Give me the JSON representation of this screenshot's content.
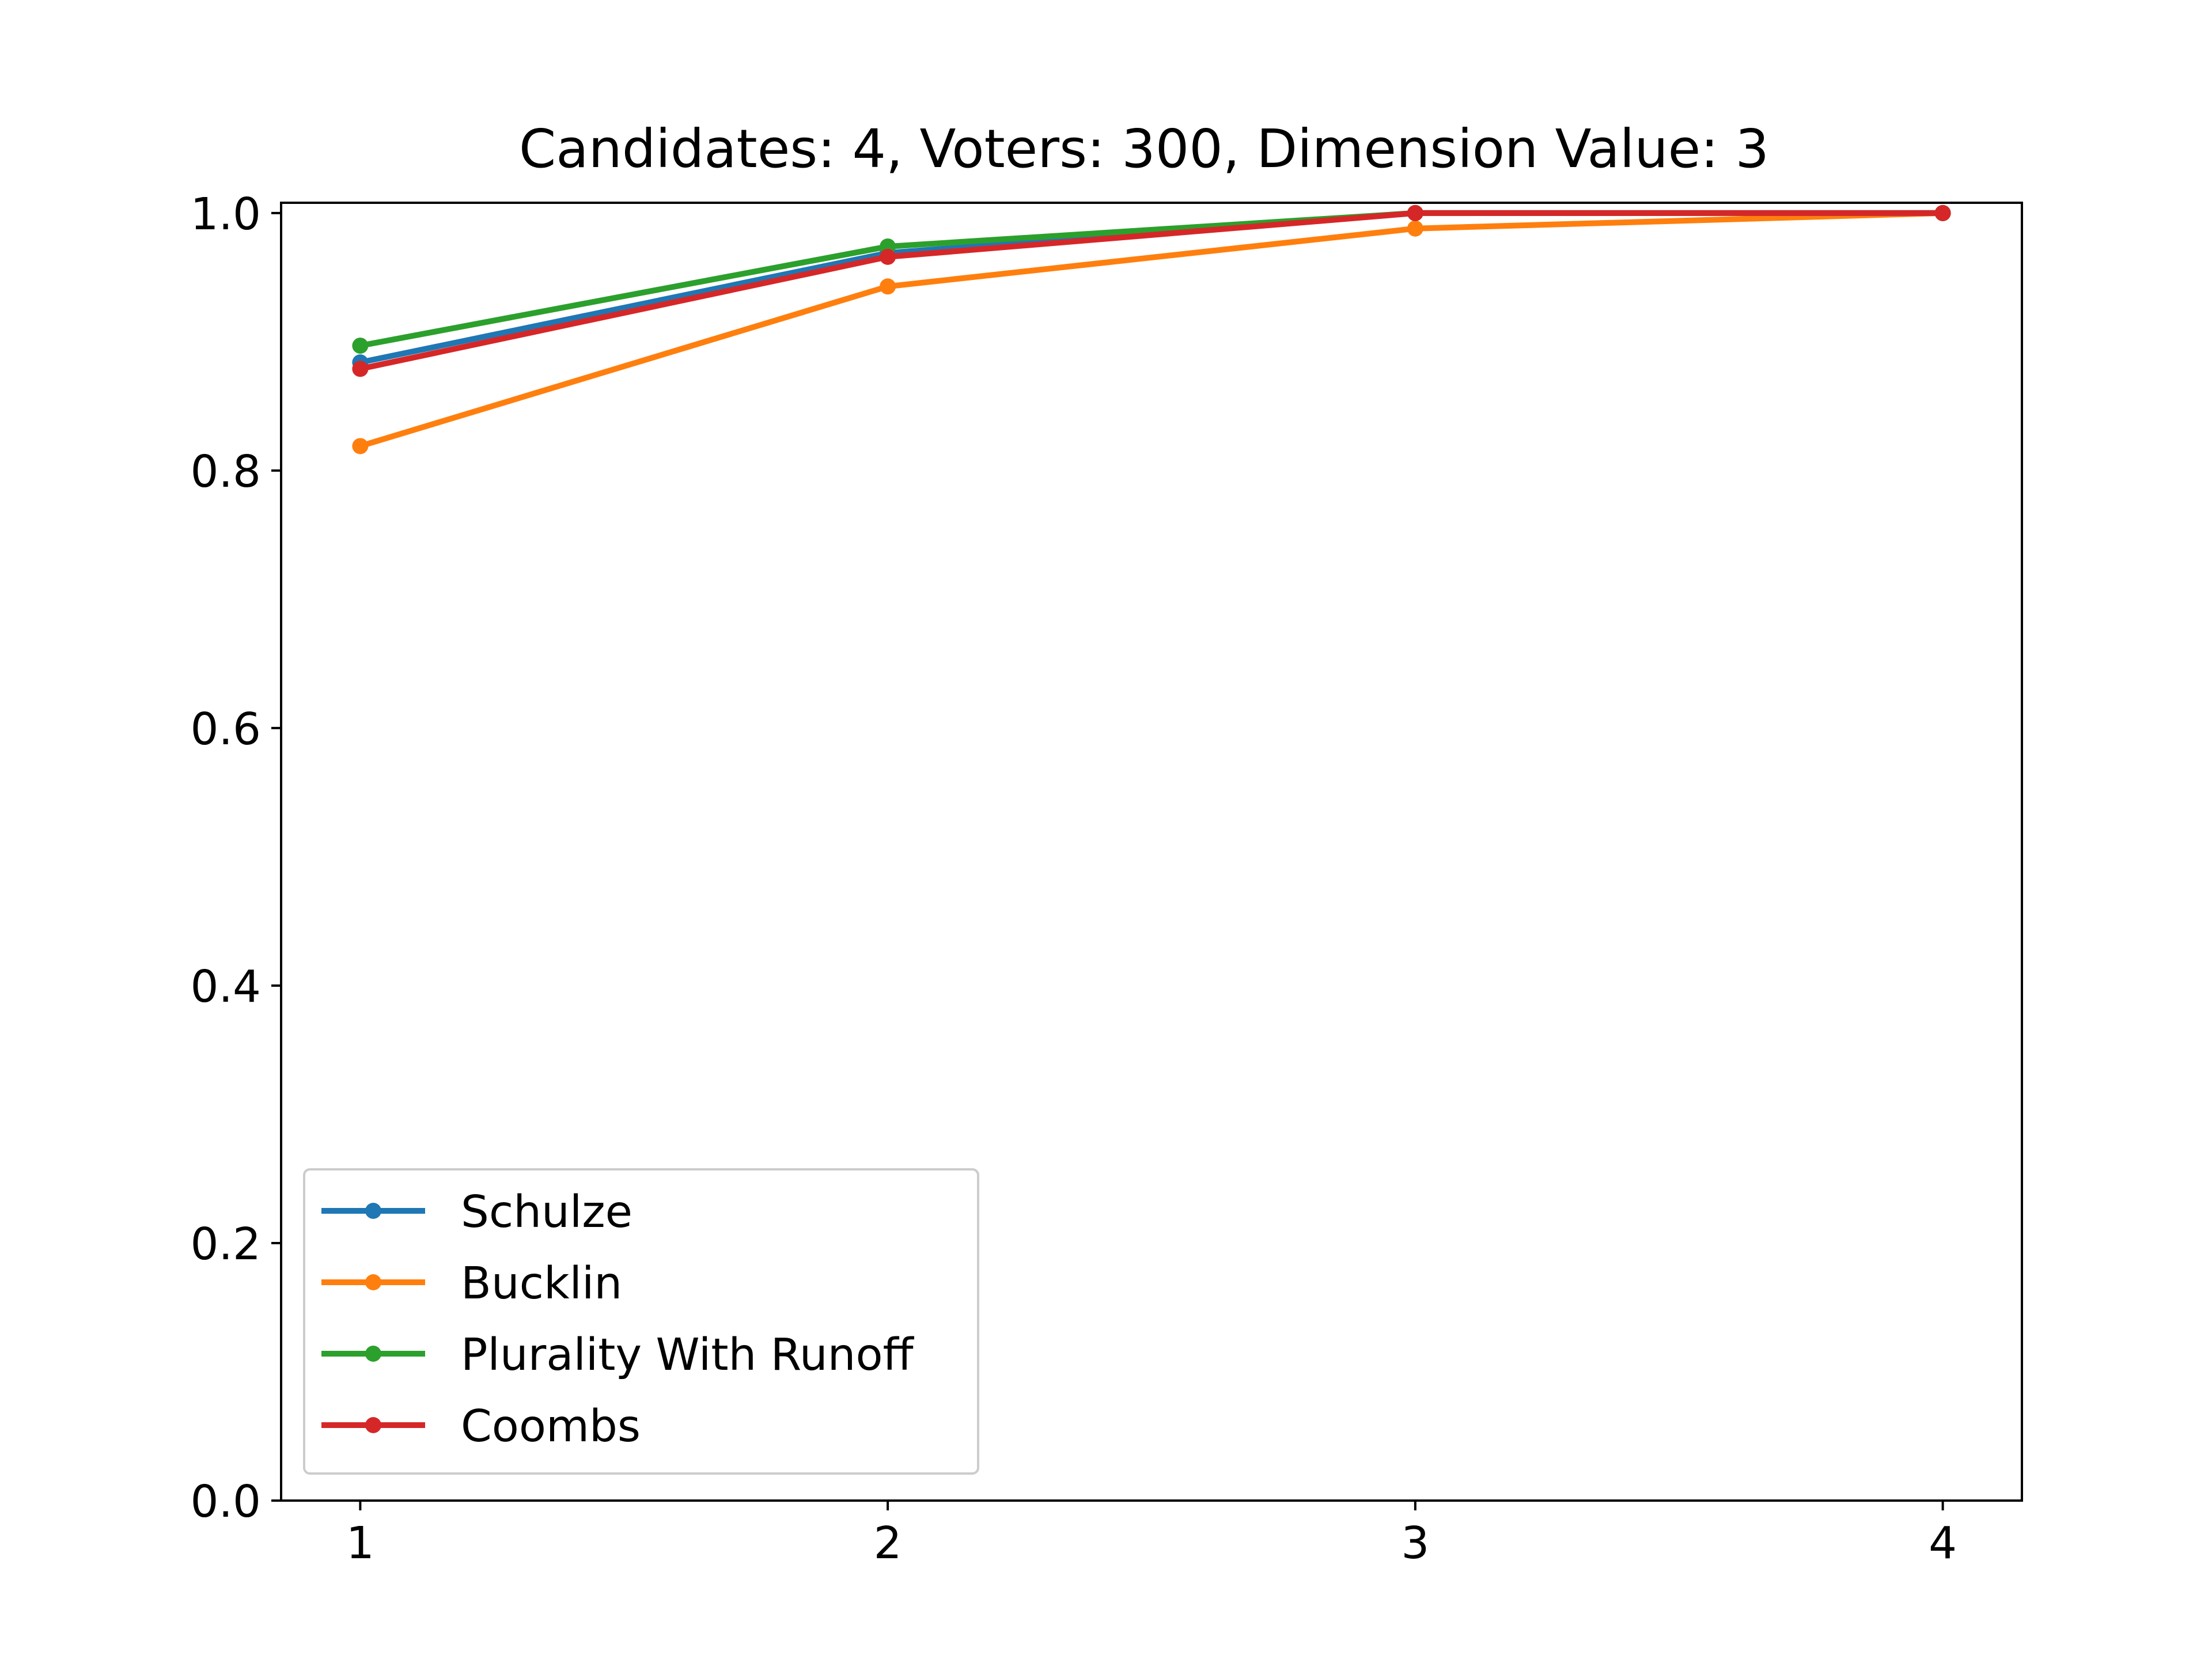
{
  "chart_data": {
    "type": "line",
    "title": "Candidates: 4, Voters: 300, Dimension Value: 3",
    "xlabel": "",
    "ylabel": "",
    "x": [
      1,
      2,
      3,
      4
    ],
    "xlim": [
      0.85,
      4.15
    ],
    "ylim": [
      0.0,
      1.008
    ],
    "xticks": [
      "1",
      "2",
      "3",
      "4"
    ],
    "yticks": [
      "0.0",
      "0.2",
      "0.4",
      "0.6",
      "0.8",
      "1.0"
    ],
    "grid": false,
    "legend_position": "lower-left",
    "series": [
      {
        "name": "Schulze",
        "color": "#1f77b4",
        "values": [
          0.884,
          0.969,
          1.0,
          1.0
        ]
      },
      {
        "name": "Bucklin",
        "color": "#ff7f0e",
        "values": [
          0.819,
          0.943,
          0.988,
          1.0
        ]
      },
      {
        "name": "Plurality With Runoff",
        "color": "#2ca02c",
        "values": [
          0.897,
          0.974,
          1.0,
          1.0
        ]
      },
      {
        "name": "Coombs",
        "color": "#d62728",
        "values": [
          0.879,
          0.966,
          1.0,
          1.0
        ]
      }
    ]
  }
}
